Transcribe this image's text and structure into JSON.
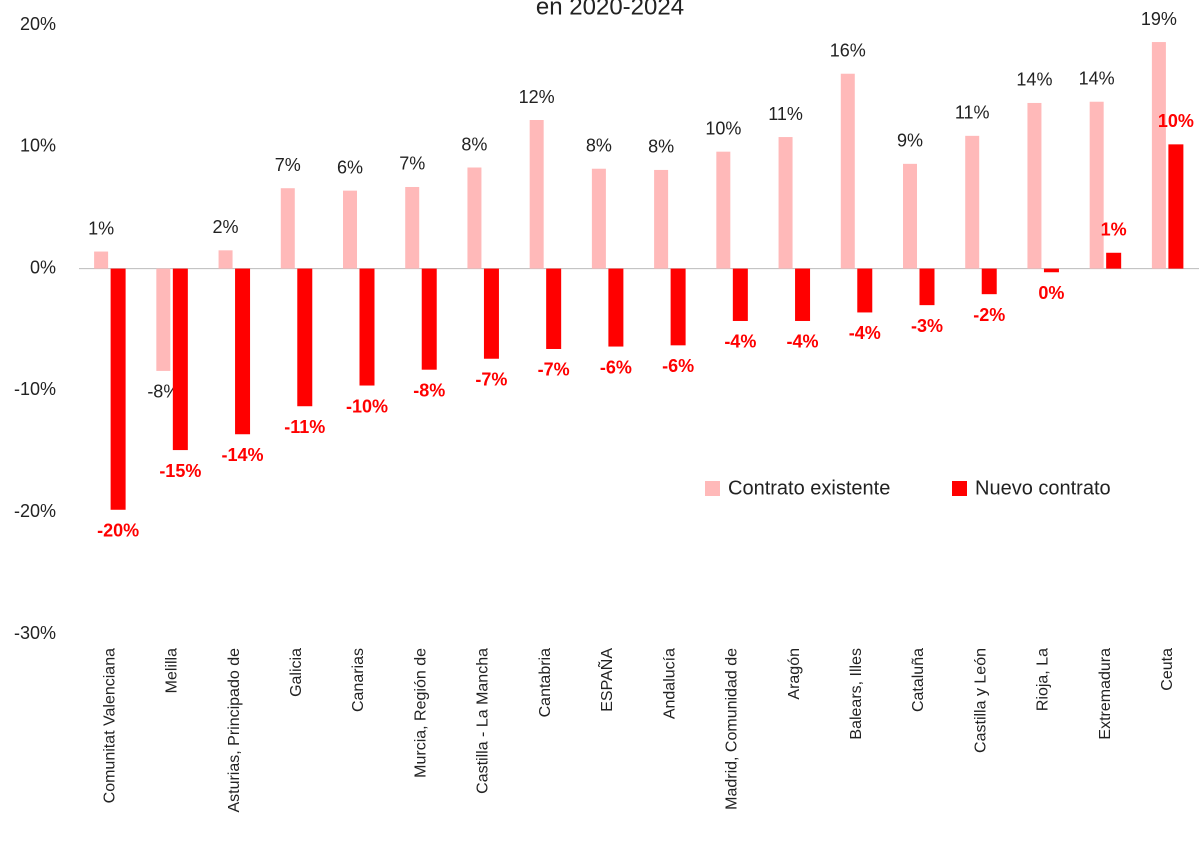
{
  "chart_data": {
    "type": "bar",
    "title": "en 2020-2024",
    "categories": [
      "Comunitat Valenciana",
      "Melilla",
      "Asturias, Principado de",
      "Galicia",
      "Canarias",
      "Murcia, Región de",
      "Castilla - La Mancha",
      "Cantabria",
      "ESPAÑA",
      "Andalucía",
      "Madrid, Comunidad de",
      "Aragón",
      "Balears, Illes",
      "Cataluña",
      "Castilla y León",
      "Rioja, La",
      "Extremadura",
      "Ceuta"
    ],
    "series": [
      {
        "name": "Contrato existente",
        "color": "#ffb9b9",
        "values": [
          1.4,
          -8.4,
          1.5,
          6.6,
          6.4,
          6.7,
          8.3,
          12.2,
          8.2,
          8.1,
          9.6,
          10.8,
          16,
          8.6,
          10.9,
          13.6,
          13.7,
          18.6
        ],
        "value_labels": [
          "1%",
          "-8%",
          "2%",
          "7%",
          "6%",
          "7%",
          "8%",
          "12%",
          "8%",
          "8%",
          "10%",
          "11%",
          "16%",
          "9%",
          "11%",
          "14%",
          "14%",
          "19%"
        ]
      },
      {
        "name": "Nuevo contrato",
        "color": "#ff0000",
        "values": [
          -19.8,
          -14.9,
          -13.6,
          -11.3,
          -9.6,
          -8.3,
          -7.4,
          -6.6,
          -6.4,
          -6.3,
          -4.3,
          -4.3,
          -3.6,
          -3,
          -2.1,
          -0.3,
          1.3,
          10.2
        ],
        "value_labels": [
          "-20%",
          "-15%",
          "-14%",
          "-11%",
          "-10%",
          "-8%",
          "-7%",
          "-7%",
          "-6%",
          "-6%",
          "-4%",
          "-4%",
          "-4%",
          "-3%",
          "-2%",
          "0%",
          "1%",
          "10%"
        ]
      }
    ],
    "ylim": [
      -30,
      20
    ],
    "yticks": [
      {
        "value": -30,
        "label": "-30%"
      },
      {
        "value": -20,
        "label": "-20%"
      },
      {
        "value": -10,
        "label": "-10%"
      },
      {
        "value": 0,
        "label": "0%"
      },
      {
        "value": 10,
        "label": "10%"
      },
      {
        "value": 20,
        "label": "20%"
      }
    ],
    "grid": false,
    "legend": "right"
  }
}
